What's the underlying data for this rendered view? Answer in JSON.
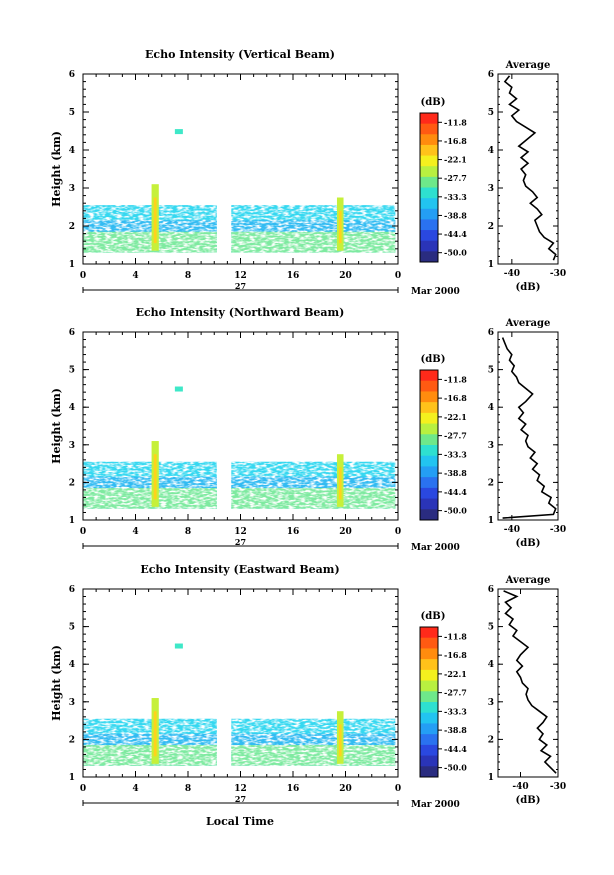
{
  "figure": {
    "shared_xlabel": "Local Time",
    "date_label": "27",
    "month_label": "Mar 2000"
  },
  "colorbar": {
    "unit": "(dB)",
    "ticks": [
      "-11.8",
      "-16.8",
      "-22.1",
      "-27.7",
      "-33.3",
      "-38.8",
      "-44.4",
      "-50.0"
    ],
    "colors": [
      "#ff2a1a",
      "#ff5a12",
      "#ff8c0e",
      "#ffc21a",
      "#f4f01e",
      "#b8f040",
      "#6ee88a",
      "#2ee0d0",
      "#22c4f0",
      "#249ef4",
      "#2a72f0",
      "#2a48e0",
      "#2a34b8",
      "#2a2c80"
    ]
  },
  "chart_data": [
    {
      "type": "heatmap",
      "title": "Echo Intensity (Vertical Beam)",
      "ylabel": "Height (km)",
      "xlim": [
        0,
        24
      ],
      "ylim": [
        1,
        6
      ],
      "x_ticks": [
        "0",
        "4",
        "8",
        "12",
        "16",
        "20",
        "0"
      ],
      "y_ticks": [
        "1",
        "2",
        "3",
        "4",
        "5",
        "6"
      ],
      "data_gap_hours": [
        10.2,
        11.3
      ],
      "profile": {
        "title": "Average",
        "xlabel": "(dB)",
        "x_ticks": [
          "-40",
          "-30"
        ],
        "xlim": [
          -43,
          -30
        ],
        "ylim": [
          1,
          6
        ],
        "y_ticks": [
          "1",
          "2",
          "3",
          "4",
          "5",
          "6"
        ],
        "points": [
          [
            -31,
            1.1
          ],
          [
            -30.5,
            1.25
          ],
          [
            -32,
            1.4
          ],
          [
            -31,
            1.55
          ],
          [
            -33,
            1.7
          ],
          [
            -34,
            1.85
          ],
          [
            -34.5,
            2.0
          ],
          [
            -35,
            2.15
          ],
          [
            -33.5,
            2.3
          ],
          [
            -34.5,
            2.45
          ],
          [
            -36,
            2.6
          ],
          [
            -34.5,
            2.75
          ],
          [
            -35.5,
            2.9
          ],
          [
            -37,
            3.05
          ],
          [
            -37.5,
            3.2
          ],
          [
            -37,
            3.35
          ],
          [
            -38,
            3.5
          ],
          [
            -36.5,
            3.65
          ],
          [
            -38,
            3.8
          ],
          [
            -36.5,
            3.95
          ],
          [
            -38.5,
            4.1
          ],
          [
            -37,
            4.25
          ],
          [
            -35,
            4.45
          ],
          [
            -37,
            4.6
          ],
          [
            -39,
            4.75
          ],
          [
            -40,
            4.9
          ],
          [
            -38.5,
            5.05
          ],
          [
            -40.5,
            5.2
          ],
          [
            -39,
            5.35
          ],
          [
            -40.5,
            5.5
          ],
          [
            -40,
            5.65
          ],
          [
            -41.5,
            5.8
          ],
          [
            -40.5,
            5.95
          ]
        ]
      }
    },
    {
      "type": "heatmap",
      "title": "Echo Intensity (Northward Beam)",
      "ylabel": "Height (km)",
      "xlim": [
        0,
        24
      ],
      "ylim": [
        1,
        6
      ],
      "x_ticks": [
        "0",
        "4",
        "8",
        "12",
        "16",
        "20",
        "0"
      ],
      "y_ticks": [
        "1",
        "2",
        "3",
        "4",
        "5",
        "6"
      ],
      "data_gap_hours": [
        10.2,
        11.3
      ],
      "profile": {
        "title": "Average",
        "xlabel": "(dB)",
        "x_ticks": [
          "-40",
          "-30"
        ],
        "xlim": [
          -43,
          -30
        ],
        "ylim": [
          1,
          6
        ],
        "y_ticks": [
          "1",
          "2",
          "3",
          "4",
          "5",
          "6"
        ],
        "points": [
          [
            -42,
            1.05
          ],
          [
            -31,
            1.15
          ],
          [
            -30.5,
            1.3
          ],
          [
            -32,
            1.45
          ],
          [
            -31.5,
            1.6
          ],
          [
            -33.5,
            1.75
          ],
          [
            -33,
            1.9
          ],
          [
            -34.5,
            2.05
          ],
          [
            -34,
            2.2
          ],
          [
            -35.5,
            2.35
          ],
          [
            -34.5,
            2.5
          ],
          [
            -36,
            2.65
          ],
          [
            -35,
            2.8
          ],
          [
            -36.5,
            2.95
          ],
          [
            -37,
            3.1
          ],
          [
            -36.5,
            3.25
          ],
          [
            -38,
            3.4
          ],
          [
            -37,
            3.55
          ],
          [
            -38.5,
            3.7
          ],
          [
            -37.5,
            3.85
          ],
          [
            -38.5,
            4.0
          ],
          [
            -37,
            4.15
          ],
          [
            -35.5,
            4.35
          ],
          [
            -37,
            4.5
          ],
          [
            -38.5,
            4.65
          ],
          [
            -39,
            4.8
          ],
          [
            -40,
            4.95
          ],
          [
            -39.5,
            5.1
          ],
          [
            -40.5,
            5.25
          ],
          [
            -40,
            5.4
          ],
          [
            -41,
            5.55
          ],
          [
            -41.5,
            5.7
          ],
          [
            -42,
            5.85
          ]
        ]
      }
    },
    {
      "type": "heatmap",
      "title": "Echo Intensity (Eastward Beam)",
      "ylabel": "Height (km)",
      "xlim": [
        0,
        24
      ],
      "ylim": [
        1,
        6
      ],
      "x_ticks": [
        "0",
        "4",
        "8",
        "12",
        "16",
        "20",
        "0"
      ],
      "y_ticks": [
        "1",
        "2",
        "3",
        "4",
        "5",
        "6"
      ],
      "data_gap_hours": [
        10.2,
        11.3
      ],
      "profile": {
        "title": "Average",
        "xlabel": "(dB)",
        "x_ticks": [
          "-40",
          "-30"
        ],
        "xlim": [
          -46,
          -30
        ],
        "ylim": [
          1,
          6
        ],
        "y_ticks": [
          "1",
          "2",
          "3",
          "4",
          "5",
          "6"
        ],
        "points": [
          [
            -30.5,
            1.1
          ],
          [
            -32,
            1.25
          ],
          [
            -33.5,
            1.4
          ],
          [
            -32,
            1.55
          ],
          [
            -34.5,
            1.7
          ],
          [
            -33,
            1.85
          ],
          [
            -35,
            2.0
          ],
          [
            -34,
            2.15
          ],
          [
            -35.5,
            2.3
          ],
          [
            -34,
            2.45
          ],
          [
            -33,
            2.6
          ],
          [
            -35,
            2.75
          ],
          [
            -37,
            2.9
          ],
          [
            -38,
            3.05
          ],
          [
            -38.5,
            3.2
          ],
          [
            -38,
            3.35
          ],
          [
            -39.5,
            3.5
          ],
          [
            -40,
            3.65
          ],
          [
            -41,
            3.8
          ],
          [
            -39.5,
            3.95
          ],
          [
            -41,
            4.1
          ],
          [
            -40,
            4.25
          ],
          [
            -38,
            4.45
          ],
          [
            -40,
            4.6
          ],
          [
            -42,
            4.75
          ],
          [
            -41,
            4.9
          ],
          [
            -43,
            5.05
          ],
          [
            -42,
            5.2
          ],
          [
            -44,
            5.35
          ],
          [
            -42.5,
            5.5
          ],
          [
            -44,
            5.65
          ],
          [
            -41,
            5.8
          ],
          [
            -44.5,
            5.95
          ]
        ]
      }
    }
  ]
}
